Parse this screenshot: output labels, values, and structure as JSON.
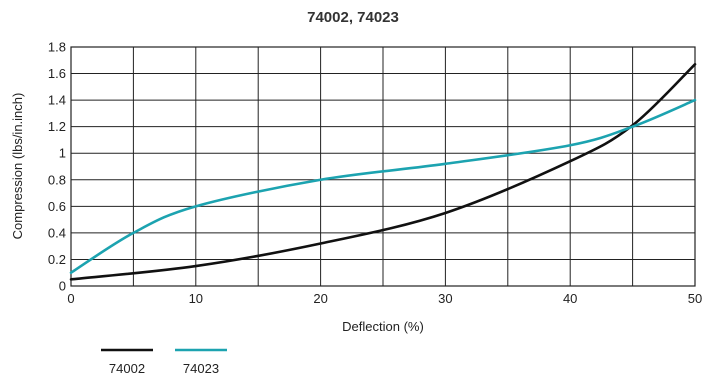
{
  "chart_data": {
    "type": "line",
    "title": "74002, 74023",
    "xlabel": "Deflection (%)",
    "ylabel": "Compression (lbs/in.inch)",
    "xlim": [
      0,
      50
    ],
    "ylim": [
      0,
      1.8
    ],
    "xticks": [
      0,
      10,
      20,
      30,
      40,
      50
    ],
    "xtick_labels": [
      "0",
      "10",
      "20",
      "30",
      "40",
      "50"
    ],
    "yticks": [
      0,
      0.2,
      0.4,
      0.6,
      0.8,
      1,
      1.2,
      1.4,
      1.6,
      1.8
    ],
    "ytick_labels": [
      "0",
      "0.2",
      "0.4",
      "0.6",
      "0.8",
      "1",
      "1.2",
      "1.4",
      "1.6",
      "1.8"
    ],
    "grid": true,
    "legend_position": "bottom-left",
    "series": [
      {
        "name": "74002",
        "color": "#111111",
        "x": [
          0,
          10,
          20,
          30,
          40,
          45,
          50
        ],
        "y": [
          0.05,
          0.15,
          0.32,
          0.55,
          0.94,
          1.21,
          1.67
        ]
      },
      {
        "name": "74023",
        "color": "#1ca3b0",
        "x": [
          0,
          5,
          10,
          20,
          30,
          40,
          45,
          50
        ],
        "y": [
          0.1,
          0.4,
          0.6,
          0.8,
          0.92,
          1.06,
          1.2,
          1.4
        ]
      }
    ]
  }
}
